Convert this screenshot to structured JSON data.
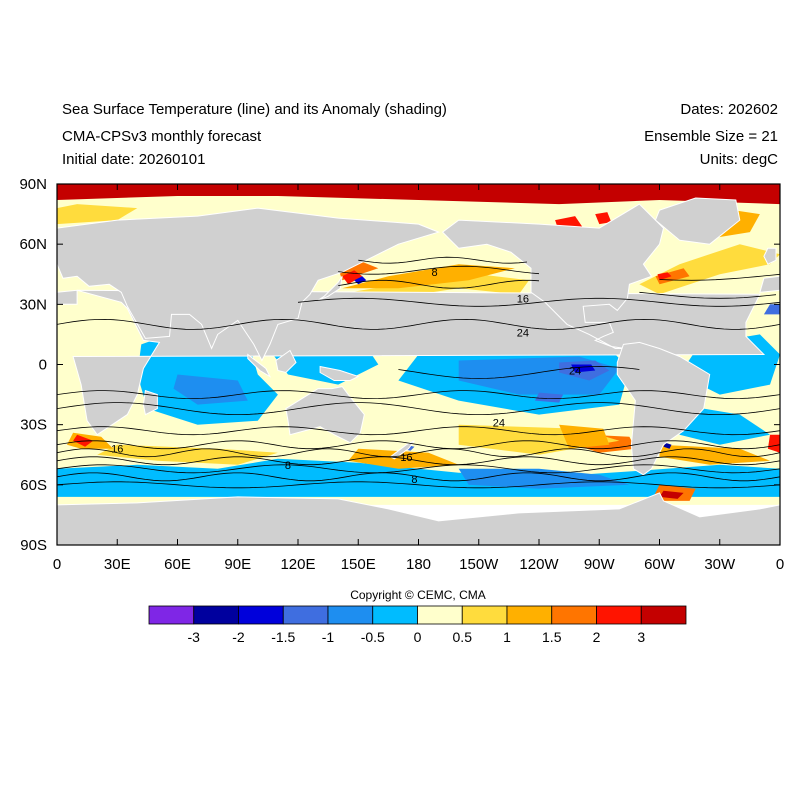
{
  "header": {
    "title_line1": "Sea Surface Temperature (line) and its Anomaly (shading)",
    "title_line2": "CMA-CPSv3 monthly forecast",
    "title_line3": "Initial date: 20260101",
    "dates": "Dates: 202602",
    "ensemble": "Ensemble Size = 21",
    "units": "Units: degC"
  },
  "map": {
    "projection": "cylindrical-equidistant",
    "lon_range": [
      0,
      360
    ],
    "lat_range": [
      -90,
      90
    ],
    "lat_ticks": [
      "90N",
      "60N",
      "30N",
      "0",
      "30S",
      "60S",
      "90S"
    ],
    "lon_ticks": [
      "0",
      "30E",
      "60E",
      "90E",
      "120E",
      "150E",
      "180",
      "150W",
      "120W",
      "90W",
      "60W",
      "30W",
      "0"
    ],
    "land_color": "#d0d0d0",
    "contour_labels": [
      {
        "text": "8",
        "lon": 188,
        "lat": 46
      },
      {
        "text": "16",
        "lon": 232,
        "lat": 33
      },
      {
        "text": "24",
        "lon": 232,
        "lat": 16
      },
      {
        "text": "24",
        "lon": 258,
        "lat": -3
      },
      {
        "text": "24",
        "lon": 220,
        "lat": -29
      },
      {
        "text": "16",
        "lon": 30,
        "lat": -42
      },
      {
        "text": "16",
        "lon": 174,
        "lat": -46
      },
      {
        "text": "8",
        "lon": 115,
        "lat": -50
      },
      {
        "text": "8",
        "lon": 178,
        "lat": -57
      }
    ]
  },
  "copyright": "Copyright © CEMC, CMA",
  "colorbar": {
    "colors": [
      "#7f26e6",
      "#00009e",
      "#0000db",
      "#3f6ee0",
      "#1e8ef0",
      "#00bcff",
      "#ffffcc",
      "#ffdc3d",
      "#ffb000",
      "#ff7500",
      "#ff1400",
      "#c40000"
    ],
    "labels": [
      "-3",
      "-2",
      "-1.5",
      "-1",
      "-0.5",
      "0",
      "0.5",
      "1",
      "1.5",
      "2",
      "3"
    ]
  }
}
